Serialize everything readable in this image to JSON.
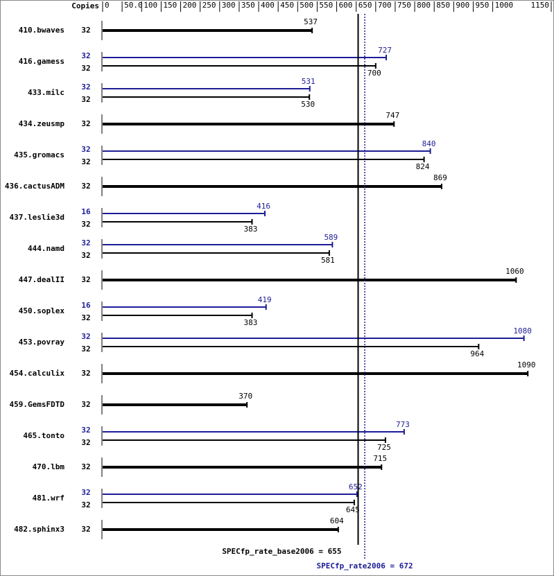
{
  "chart_data": {
    "type": "bar",
    "copies_label": "Copies",
    "categories": [
      "410.bwaves",
      "416.gamess",
      "433.milc",
      "434.zeusmp",
      "435.gromacs",
      "436.cactusADM",
      "437.leslie3d",
      "444.namd",
      "447.dealII",
      "450.soplex",
      "453.povray",
      "454.calculix",
      "459.GemsFDTD",
      "465.tonto",
      "470.lbm",
      "481.wrf",
      "482.sphinx3"
    ],
    "base_copies": [
      32,
      32,
      32,
      32,
      32,
      32,
      32,
      32,
      32,
      32,
      32,
      32,
      32,
      32,
      32,
      32,
      32
    ],
    "base_values": [
      537,
      700,
      530,
      747,
      824,
      869,
      383,
      581,
      1060,
      383,
      964,
      1090,
      370,
      725,
      715,
      645,
      604
    ],
    "peak_copies": [
      null,
      32,
      32,
      null,
      32,
      null,
      16,
      32,
      null,
      16,
      32,
      null,
      null,
      32,
      null,
      32,
      null
    ],
    "peak_values": [
      null,
      727,
      531,
      null,
      840,
      null,
      416,
      589,
      null,
      419,
      1080,
      null,
      null,
      773,
      null,
      652,
      null
    ],
    "base_color": "#000000",
    "peak_color": "#1c1c96",
    "xlim": [
      0,
      1150
    ],
    "xticks": [
      0,
      {
        "value": 50,
        "label": "50.0"
      },
      100,
      150,
      200,
      250,
      300,
      350,
      400,
      450,
      500,
      550,
      600,
      650,
      700,
      750,
      800,
      850,
      900,
      950,
      1000,
      1150
    ],
    "base_reference": {
      "value": 655,
      "label": "SPECfp_rate_base2006 = 655"
    },
    "peak_reference": {
      "value": 672,
      "label": "SPECfp_rate2006 = 672"
    }
  }
}
